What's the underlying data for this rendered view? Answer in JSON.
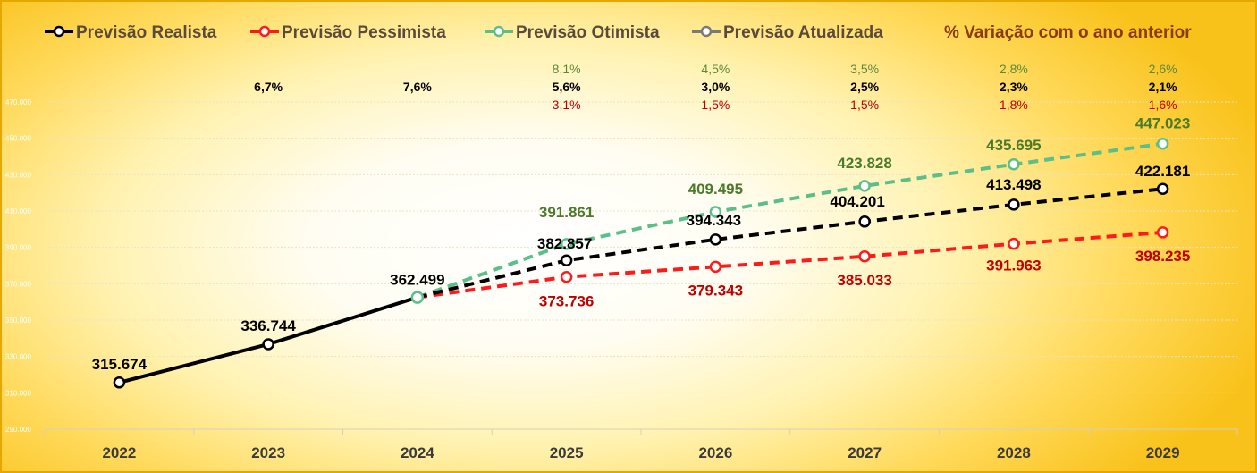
{
  "chart_data": {
    "type": "line",
    "categories": [
      "2022",
      "2023",
      "2024",
      "2025",
      "2026",
      "2027",
      "2028",
      "2029"
    ],
    "ylim": [
      290000,
      470000
    ],
    "yticks": [
      "470.000",
      "450.000",
      "430.000",
      "410.000",
      "390.000",
      "370.000",
      "350.000",
      "330.000",
      "310.000",
      "290.000"
    ],
    "ytick_values": [
      470000,
      450000,
      430000,
      410000,
      390000,
      370000,
      350000,
      330000,
      310000,
      290000
    ],
    "legend": {
      "position": "top",
      "items": [
        {
          "label": "Previsão Realista",
          "color": "#000000",
          "text_color": "#5a4a3a"
        },
        {
          "label": "Previsão Pessimista",
          "color": "#ff1a1a",
          "text_color": "#5a4a3a"
        },
        {
          "label": "Previsão Otimista",
          "color": "#5cbf8a",
          "text_color": "#5a4a3a"
        },
        {
          "label": "Previsão Atualizada",
          "color": "#7a7a7a",
          "text_color": "#5a4a3a"
        }
      ],
      "variation_title": "% Variação com o ano anterior",
      "variation_color": "#8b3a0a"
    },
    "series": [
      {
        "name": "Previsão Realista",
        "color": "#000000",
        "label_color": "#000000",
        "x": [
          "2022",
          "2023",
          "2024",
          "2025",
          "2026",
          "2027",
          "2028",
          "2029"
        ],
        "values": [
          315674,
          336744,
          362499,
          382857,
          394343,
          404201,
          413498,
          422181
        ],
        "labels": [
          "315.674",
          "336.744",
          "362.499",
          "382.857",
          "394.343",
          "404.201",
          "413.498",
          "422.181"
        ]
      },
      {
        "name": "Previsão Pessimista",
        "color": "#ff1a1a",
        "label_color": "#c00000",
        "x": [
          "2024",
          "2025",
          "2026",
          "2027",
          "2028",
          "2029"
        ],
        "values": [
          362499,
          373736,
          379343,
          385033,
          391963,
          398235
        ],
        "labels": [
          "",
          "373.736",
          "379.343",
          "385.033",
          "391.963",
          "398.235"
        ]
      },
      {
        "name": "Previsão Otimista",
        "color": "#5cbf8a",
        "label_color": "#4a7a2a",
        "x": [
          "2024",
          "2025",
          "2026",
          "2027",
          "2028",
          "2029"
        ],
        "values": [
          362499,
          391861,
          409495,
          423828,
          435695,
          447023
        ],
        "labels": [
          "",
          "391.861",
          "409.495",
          "423.828",
          "435.695",
          "447.023"
        ]
      }
    ],
    "variation": {
      "optimistic": [
        "",
        "",
        "",
        "8,1%",
        "4,5%",
        "3,5%",
        "2,8%",
        "2,6%"
      ],
      "realistic": [
        "",
        "6,7%",
        "7,6%",
        "5,6%",
        "3,0%",
        "2,5%",
        "2,3%",
        "2,1%"
      ],
      "pessimistic": [
        "",
        "",
        "",
        "3,1%",
        "1,5%",
        "1,5%",
        "1,8%",
        "1,6%"
      ],
      "colors": {
        "optimistic": "#5a8a3a",
        "realistic": "#000000",
        "pessimistic": "#c00000"
      }
    },
    "grid": true
  }
}
